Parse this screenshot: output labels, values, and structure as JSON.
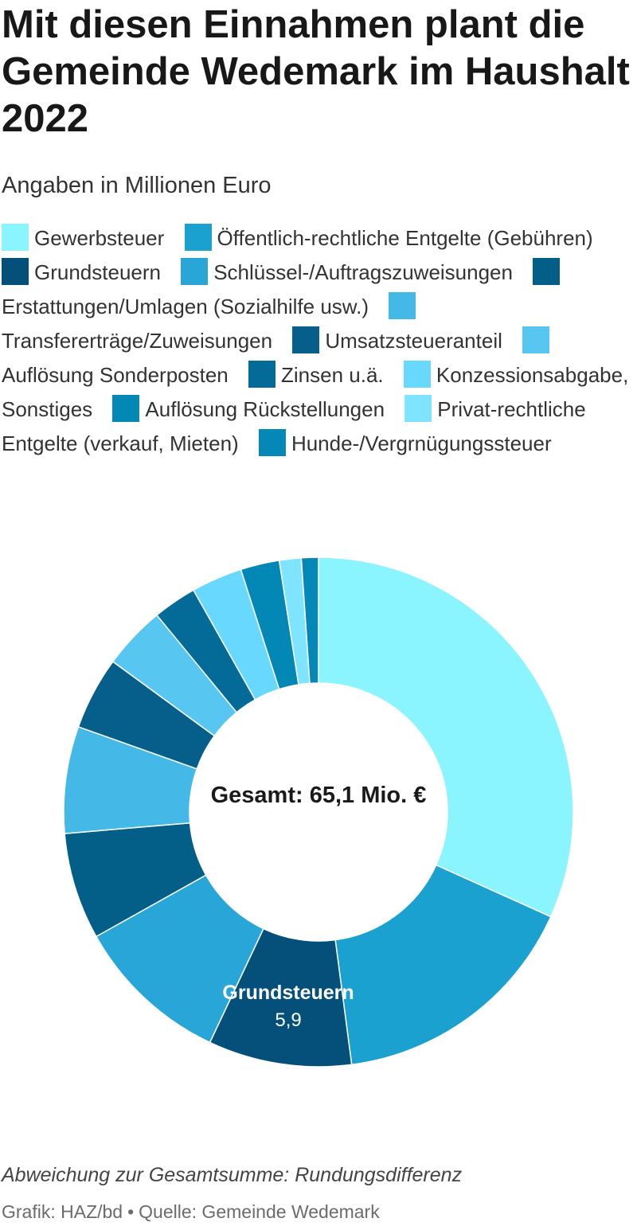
{
  "title": "Mit diesen Einnahmen plant die Gemeinde Wedemark im Haushalt 2022",
  "subtitle": "Angaben in Millionen Euro",
  "footnote": "Abweichung zur Gesamtsumme: Rundungsdifferenz",
  "source": {
    "credit": "Grafik: HAZ/bd",
    "separator": "•",
    "origin": "Quelle: Gemeinde Wedemark"
  },
  "chart_data": {
    "type": "pie",
    "center_label": "Gesamt: 65,1 Mio. €",
    "legend_position": "top",
    "categories": [
      "Gewerbsteuer",
      "Öffentlich-rechtliche Entgelte (Gebühren)",
      "Grundsteuern",
      "Schlüssel-/Auftragszuweisungen",
      "Erstattungen/Umlagen (Sozialhilfe usw.)",
      "Transfererträge/Zuweisungen",
      "Umsatzsteueranteil",
      "Auflösung Sonderposten",
      "Zinsen u.ä.",
      "Konzessionsabgabe, Sonstiges",
      "Auflösung Rückstellungen",
      "Privat-rechtliche Entgelte (verkauf, Mieten)",
      "Hunde-/Vergrnügungssteuer"
    ],
    "values": [
      20.6,
      10.5,
      5.9,
      6.4,
      4.4,
      4.4,
      3.0,
      2.6,
      1.8,
      2.1,
      1.6,
      0.9,
      0.7
    ],
    "colors": [
      "#8af4ff",
      "#1aa1d0",
      "#04507b",
      "#29a6d8",
      "#035e88",
      "#44b8e7",
      "#055f8a",
      "#57c7f2",
      "#046a98",
      "#69d8fe",
      "#0388b6",
      "#7ee4ff",
      "#0588b8"
    ],
    "data_labels": [
      {
        "category": "Grundsteuern",
        "label": "Grundsteuern",
        "value_text": "5,9"
      }
    ]
  }
}
